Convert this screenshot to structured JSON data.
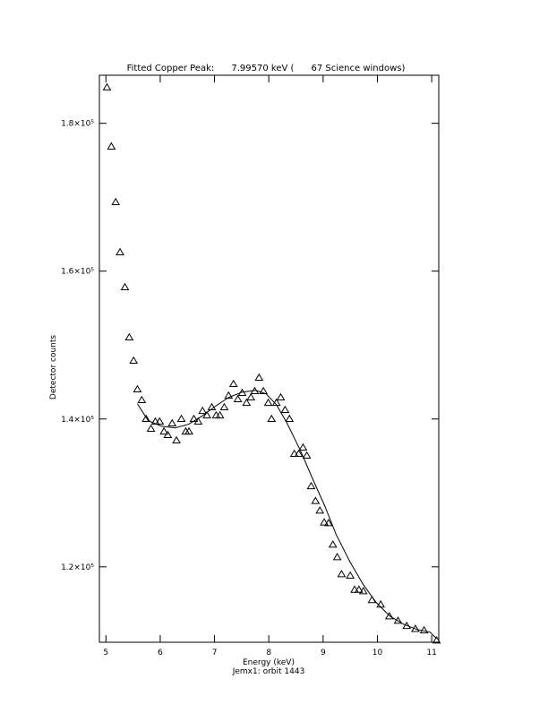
{
  "chart_data": {
    "type": "scatter",
    "title": "Fitted Copper Peak:      7.99570 keV (      67 Science windows)",
    "x_label": "Energy (keV)",
    "y_label": "Detector counts",
    "subtitle": "Jemx1: orbit 1443",
    "xlim": [
      4.88,
      11.13
    ],
    "ylim": [
      109800,
      186500
    ],
    "xticks": [
      5,
      6,
      7,
      8,
      9,
      10,
      11
    ],
    "yticks": [
      {
        "value": 120000,
        "label": "1.2×10⁵"
      },
      {
        "value": 140000,
        "label": "1.4×10⁵"
      },
      {
        "value": 160000,
        "label": "1.6×10⁵"
      },
      {
        "value": 180000,
        "label": "1.8×10⁵"
      }
    ],
    "color": "#000000",
    "series": [
      {
        "marker": "triangle",
        "x": [
          5.02,
          5.1,
          5.18,
          5.26,
          5.35,
          5.43,
          5.51,
          5.58,
          5.66,
          5.74,
          5.83,
          5.91,
          5.99,
          6.07,
          6.14,
          6.22,
          6.3,
          6.39,
          6.47,
          6.53,
          6.62,
          6.7,
          6.78,
          6.86,
          6.95,
          7.03,
          7.1,
          7.18,
          7.26,
          7.35,
          7.43,
          7.51,
          7.59,
          7.67,
          7.74,
          7.82,
          7.9,
          7.99,
          8.05,
          8.14,
          8.22,
          8.3,
          8.38,
          8.47,
          8.55,
          8.63,
          8.7,
          8.78,
          8.86,
          8.94,
          9.02,
          9.1,
          9.18,
          9.26,
          9.34,
          9.5,
          9.58,
          9.66,
          9.74,
          9.9,
          10.06,
          10.22,
          10.38,
          10.54,
          10.7,
          10.86,
          11.09
        ],
        "values": [
          184850,
          176850,
          169330,
          162540,
          157820,
          151030,
          147880,
          144000,
          142550,
          140000,
          138670,
          139640,
          139640,
          138300,
          137820,
          139400,
          137100,
          140000,
          138300,
          138300,
          140000,
          139640,
          141090,
          140480,
          141580,
          140480,
          140480,
          141580,
          143150,
          144730,
          142670,
          143520,
          142180,
          142910,
          143760,
          145580,
          143760,
          142180,
          140000,
          142180,
          142910,
          141220,
          140000,
          135280,
          135280,
          136130,
          135040,
          130900,
          128900,
          127600,
          126000,
          125900,
          123000,
          121300,
          119000,
          118800,
          116900,
          116900,
          116700,
          115500,
          114900,
          113300,
          112700,
          112000,
          111600,
          111400,
          110030
        ]
      },
      {
        "marker": "line",
        "x": [
          5.58,
          5.78,
          6.02,
          6.27,
          6.52,
          6.77,
          7.01,
          7.26,
          7.51,
          7.76,
          7.95,
          8.14,
          8.33,
          8.58,
          8.83,
          9.03,
          9.24,
          9.49,
          9.74,
          9.98,
          10.23,
          10.48,
          10.73,
          10.97,
          11.09
        ],
        "values": [
          142060,
          139760,
          139030,
          138790,
          139280,
          140390,
          141700,
          142910,
          143640,
          143880,
          143400,
          141940,
          139520,
          135770,
          131520,
          128250,
          124380,
          120740,
          117590,
          115160,
          113330,
          112250,
          111520,
          111160,
          110300
        ]
      }
    ]
  }
}
